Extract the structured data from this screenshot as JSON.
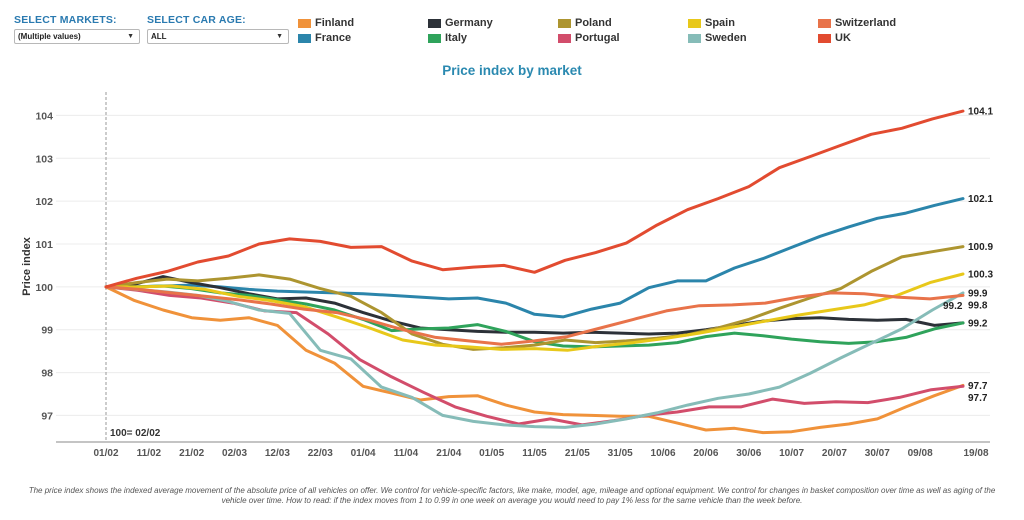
{
  "filters": {
    "markets": {
      "label": "SELECT MARKETS:",
      "value": "(Multiple values)"
    },
    "car_age": {
      "label": "SELECT CAR AGE:",
      "value": "ALL"
    }
  },
  "footnote": "The price index shows the indexed average movement of the absolute price of all vehicles on offer. We control for vehicle-specific factors, like make, model, age, mileage and optional equipment. We control for changes in basket composition over time as well as aging of the vehicle over time. How to read: if the index moves from 1 to 0.99 in one week on average you would need to pay 1% less for the same vehicle than the week before.",
  "chart_data": {
    "type": "line",
    "title": "Price index by market",
    "xlabel": "",
    "ylabel": "Price index",
    "annotation": "100= 02/02",
    "ylim": [
      96.45,
      104.5
    ],
    "yticks": [
      97,
      98,
      99,
      100,
      101,
      102,
      103,
      104
    ],
    "grid": true,
    "legend_position": "top",
    "x_tick_labels": [
      "01/02",
      "11/02",
      "21/02",
      "02/03",
      "12/03",
      "22/03",
      "01/04",
      "11/04",
      "21/04",
      "01/05",
      "11/05",
      "21/05",
      "31/05",
      "10/06",
      "20/06",
      "30/06",
      "10/07",
      "20/07",
      "30/07",
      "09/08",
      "19/08"
    ],
    "series": [
      {
        "name": "Finland",
        "color": "#f0923a",
        "values": [
          100,
          99.68,
          99.46,
          99.28,
          99.22,
          99.28,
          99.1,
          98.52,
          98.22,
          97.68,
          97.52,
          97.36,
          97.44,
          97.46,
          97.24,
          97.08,
          97.02,
          97.0,
          96.98,
          96.98,
          96.82,
          96.66,
          96.7,
          96.6,
          96.62,
          96.72,
          96.8,
          96.92,
          97.2,
          97.46,
          97.7
        ],
        "end_label": "97.7"
      },
      {
        "name": "France",
        "color": "#2b85ab",
        "values": [
          100,
          100.0,
          100.02,
          100.04,
          100.0,
          99.94,
          99.9,
          99.88,
          99.86,
          99.84,
          99.8,
          99.76,
          99.72,
          99.74,
          99.62,
          99.36,
          99.3,
          99.48,
          99.62,
          99.98,
          100.14,
          100.14,
          100.44,
          100.66,
          100.92,
          101.18,
          101.4,
          101.6,
          101.72,
          101.9,
          102.06
        ],
        "end_label": "102.1"
      },
      {
        "name": "Germany",
        "color": "#2c3138",
        "values": [
          100,
          100.06,
          100.24,
          100.1,
          99.98,
          99.84,
          99.72,
          99.74,
          99.62,
          99.4,
          99.2,
          99.04,
          99.0,
          98.96,
          98.94,
          98.94,
          98.92,
          98.94,
          98.92,
          98.9,
          98.92,
          99.0,
          99.1,
          99.2,
          99.26,
          99.28,
          99.24,
          99.22,
          99.24,
          99.1,
          99.16
        ],
        "end_label": "99.2"
      },
      {
        "name": "Italy",
        "color": "#2fa35b",
        "values": [
          100,
          100.0,
          100.02,
          99.96,
          99.86,
          99.8,
          99.7,
          99.6,
          99.46,
          99.24,
          98.98,
          99.02,
          99.04,
          99.12,
          98.96,
          98.72,
          98.62,
          98.6,
          98.62,
          98.64,
          98.7,
          98.84,
          98.92,
          98.86,
          98.78,
          98.72,
          98.68,
          98.72,
          98.82,
          99.02,
          99.16
        ]
      },
      {
        "name": "Poland",
        "color": "#ad9530",
        "values": [
          100,
          100.1,
          100.18,
          100.14,
          100.2,
          100.28,
          100.18,
          99.96,
          99.78,
          99.4,
          98.9,
          98.66,
          98.54,
          98.58,
          98.64,
          98.76,
          98.7,
          98.74,
          98.8,
          98.88,
          99.04,
          99.24,
          99.5,
          99.74,
          99.96,
          100.36,
          100.7,
          100.82,
          100.94
        ],
        "end_label": "100.9"
      },
      {
        "name": "Portugal",
        "color": "#d24d6b",
        "values": [
          100,
          99.92,
          99.8,
          99.74,
          99.62,
          99.44,
          99.4,
          98.9,
          98.3,
          97.9,
          97.54,
          97.2,
          96.98,
          96.8,
          96.92,
          96.78,
          96.88,
          97.0,
          97.08,
          97.2,
          97.2,
          97.38,
          97.28,
          97.32,
          97.3,
          97.42,
          97.6,
          97.68
        ],
        "end_label": "97.7"
      },
      {
        "name": "Spain",
        "color": "#e8c81a",
        "values": [
          100,
          100.0,
          100.02,
          99.94,
          99.78,
          99.68,
          99.54,
          99.3,
          99.04,
          98.76,
          98.64,
          98.6,
          98.54,
          98.56,
          98.52,
          98.62,
          98.7,
          98.8,
          98.92,
          99.06,
          99.2,
          99.34,
          99.46,
          99.58,
          99.8,
          100.1,
          100.3
        ],
        "end_label": "100.3"
      },
      {
        "name": "Sweden",
        "color": "#86bcb8",
        "values": [
          100,
          99.94,
          99.88,
          99.8,
          99.66,
          99.46,
          99.38,
          98.52,
          98.32,
          97.66,
          97.42,
          97.0,
          96.86,
          96.78,
          96.74,
          96.72,
          96.8,
          96.92,
          97.06,
          97.24,
          97.4,
          97.5,
          97.66,
          97.98,
          98.34,
          98.68,
          99.02,
          99.46,
          99.86
        ],
        "end_label": "99.9"
      },
      {
        "name": "Switzerland",
        "color": "#e8734a",
        "values": [
          100,
          99.94,
          99.86,
          99.78,
          99.7,
          99.6,
          99.48,
          99.4,
          99.22,
          99.0,
          98.82,
          98.74,
          98.66,
          98.74,
          98.84,
          99.04,
          99.24,
          99.44,
          99.56,
          99.58,
          99.62,
          99.76,
          99.86,
          99.84,
          99.76,
          99.72,
          99.8
        ],
        "end_label": "99.8"
      },
      {
        "name": "UK",
        "color": "#e24b30",
        "values": [
          100,
          100.2,
          100.36,
          100.58,
          100.72,
          101.0,
          101.12,
          101.06,
          100.92,
          100.94,
          100.6,
          100.4,
          100.46,
          100.5,
          100.34,
          100.62,
          100.8,
          101.02,
          101.44,
          101.8,
          102.06,
          102.34,
          102.78,
          103.04,
          103.3,
          103.56,
          103.7,
          103.92,
          104.1
        ],
        "end_label": "104.1"
      }
    ],
    "extra_label": "99.2"
  }
}
